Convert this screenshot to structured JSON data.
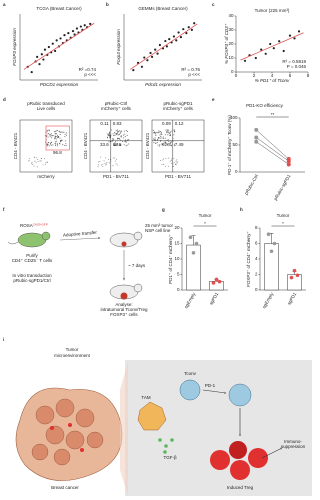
{
  "panels": [
    "a",
    "b",
    "c",
    "d",
    "e",
    "f",
    "g",
    "h",
    "i"
  ],
  "chart_data": [
    {
      "type": "scatter",
      "title": "TCGA (Breast Cancer)",
      "x_label": "PDCD1 expression",
      "y_label": "FOXP3 expression",
      "annotations": [
        "R² =0.74",
        "p <<<"
      ],
      "color": "#222222",
      "trend_color": "#e05050",
      "xlim": [
        0,
        10
      ],
      "ylim": [
        0,
        10
      ],
      "x": [
        1,
        1.5,
        2,
        2.2,
        2.5,
        2.8,
        3,
        3.2,
        3.5,
        3.7,
        4,
        4.2,
        4.5,
        4.7,
        5,
        5.2,
        5.5,
        5.7,
        6,
        6.2,
        6.5,
        6.8,
        7,
        7.3,
        7.5,
        7.8,
        8,
        8.3,
        8.6,
        9
      ],
      "y": [
        2,
        1.2,
        2.8,
        3.5,
        2.4,
        3.9,
        3.1,
        4.6,
        3.8,
        5,
        4.2,
        5.5,
        4.4,
        6,
        5.1,
        6.3,
        5.6,
        6.8,
        6,
        7.1,
        6.4,
        7.4,
        6.9,
        7.8,
        7.2,
        8.1,
        7.6,
        8.3,
        8,
        8.5
      ],
      "trendline": {
        "x": [
          0.5,
          9.5
        ],
        "y": [
          1.6,
          8.6
        ]
      }
    },
    {
      "type": "scatter",
      "title": "GEMMs (Breast Cancer)",
      "x_label": "Pdcd1 expression",
      "y_label": "Foxp3 expression",
      "annotations": [
        "R² = 0.76",
        "p <<<"
      ],
      "color": "#222222",
      "trend_color": "#e05050",
      "xlim": [
        0,
        10
      ],
      "ylim": [
        0,
        10
      ],
      "x": [
        1.2,
        1.8,
        2.3,
        2.6,
        3,
        3.4,
        3.6,
        4,
        4.3,
        4.6,
        5,
        5.3,
        5.5,
        5.8,
        6.1,
        6.4,
        6.7,
        7,
        7.3,
        7.6,
        8,
        8.3,
        8.7,
        9
      ],
      "y": [
        1.5,
        2.6,
        2,
        3.4,
        3,
        4.1,
        3.5,
        4.6,
        4,
        5.3,
        4.8,
        5.9,
        5.1,
        6.2,
        5.7,
        6.6,
        6,
        7.2,
        6.5,
        7.7,
        7.1,
        8,
        7.6,
        8.6
      ],
      "trendline": {
        "x": [
          0.8,
          9.4
        ],
        "y": [
          1.6,
          8.5
        ]
      }
    },
    {
      "type": "scatter",
      "title": "Tumor (225 mm³)",
      "x_label": "% PD1⁺ of Tconv",
      "y_label": "% FOXP3⁺ of CD3⁺",
      "annotations": [
        "R² = 0.5919",
        "P = 0.046"
      ],
      "color": "#222222",
      "trend_color": "#e05050",
      "xlim": [
        0,
        8
      ],
      "ylim": [
        0,
        40
      ],
      "xticks": [
        0,
        2,
        4,
        6,
        8
      ],
      "yticks": [
        0,
        10,
        20,
        30,
        40
      ],
      "x": [
        1,
        1.5,
        2.2,
        2.8,
        3.3,
        3.8,
        4.2,
        4.8,
        5.3,
        6,
        6.5,
        7
      ],
      "y": [
        8,
        12,
        10,
        16,
        13,
        20,
        17,
        22,
        15,
        26,
        24,
        29
      ],
      "trendline": {
        "x": [
          0.5,
          7.5
        ],
        "y": [
          8.5,
          28
        ]
      }
    },
    {
      "type": "paired",
      "title": "PD1-KO efficiency",
      "y_label": "PD-1⁺ of mCherry⁺ Tconv (%)",
      "significance": "**",
      "categories": [
        "pRubic-Ctrl",
        "pRubic-sgPD1"
      ],
      "colors": [
        "#999999",
        "#e05050"
      ],
      "ylim": [
        0,
        100
      ],
      "yticks": [
        0,
        50,
        100
      ],
      "series": [
        {
          "values": [
            78,
            24
          ]
        },
        {
          "values": [
            64,
            20
          ]
        },
        {
          "values": [
            56,
            14
          ]
        }
      ]
    },
    {
      "type": "bar",
      "title": "Tumor",
      "y_label": "PD1⁺ of CD4⁺ mCherry⁺",
      "significance": "*",
      "categories": [
        "sgEmpty",
        "sgPD1"
      ],
      "colors": [
        "#999999",
        "#e05050"
      ],
      "ylim": [
        0,
        20
      ],
      "yticks": [
        0,
        5,
        10,
        15,
        20
      ],
      "values": [
        14.5,
        2.8
      ],
      "error": [
        3,
        0.6
      ],
      "points": [
        [
          17,
          12,
          15
        ],
        [
          2.3,
          3.4,
          2.7
        ]
      ]
    },
    {
      "type": "bar",
      "title": "Tumor",
      "y_label": "FOXP3⁺ of CD4⁺ mCherry⁺",
      "significance": "*",
      "categories": [
        "sgEmpty",
        "sgPD1"
      ],
      "colors": [
        "#999999",
        "#e05050"
      ],
      "ylim": [
        0,
        8
      ],
      "yticks": [
        0,
        2,
        4,
        6,
        8
      ],
      "values": [
        6,
        2
      ],
      "error": [
        1.3,
        0.4
      ],
      "points": [
        [
          7.2,
          5,
          6
        ],
        [
          1.6,
          2.5,
          1.9
        ]
      ]
    }
  ],
  "flow": [
    {
      "title": [
        "pRubic transduced",
        "Live cells"
      ],
      "x_label": "mCherry",
      "y_label": "CD4 - BV421",
      "gates": [
        "96.8"
      ]
    },
    {
      "title": [
        "pRubic-Ctrl",
        "mCherry⁺ cells"
      ],
      "x_label": "PD1 - BV711",
      "y_label": "CD4 - BV421",
      "gates": [
        "0.11",
        "0.83",
        "33.6",
        "65.5"
      ]
    },
    {
      "title": [
        "pRubic-sgPD1",
        "mCherry⁺ cells"
      ],
      "x_label": "PD1 - BV711",
      "y_label": "CD4 - BV421",
      "gates": [
        "0.09",
        "0.12",
        "92.3",
        "7.49"
      ]
    }
  ],
  "protocol": {
    "strain": "ROSA",
    "strain_sup": "CAS9-GFP",
    "purify": [
      "Purify",
      "CD4⁺ CD25⁻ T cells"
    ],
    "transduction": [
      "In vitro transduction",
      "pRubic-sgPD1/Ctrl"
    ],
    "transfer": "Adoptive transfer",
    "tumor": [
      "25 mm³ tumor",
      "NSP cell line"
    ],
    "days": "~ 7 days",
    "analyse": [
      "Analyse:",
      "intratumoral Tconv/Treg",
      "FOXP3⁺ cells"
    ]
  },
  "model": {
    "tme": [
      "Tumor",
      "microenvironment"
    ],
    "cancer": "Breast cancer",
    "tam": "TAM",
    "tconv": "Tconv",
    "pd1": "PD-1",
    "tgf": "TGF-β",
    "suppression": [
      "Immuno-",
      "suppression"
    ],
    "treg": "Induced Treg"
  }
}
